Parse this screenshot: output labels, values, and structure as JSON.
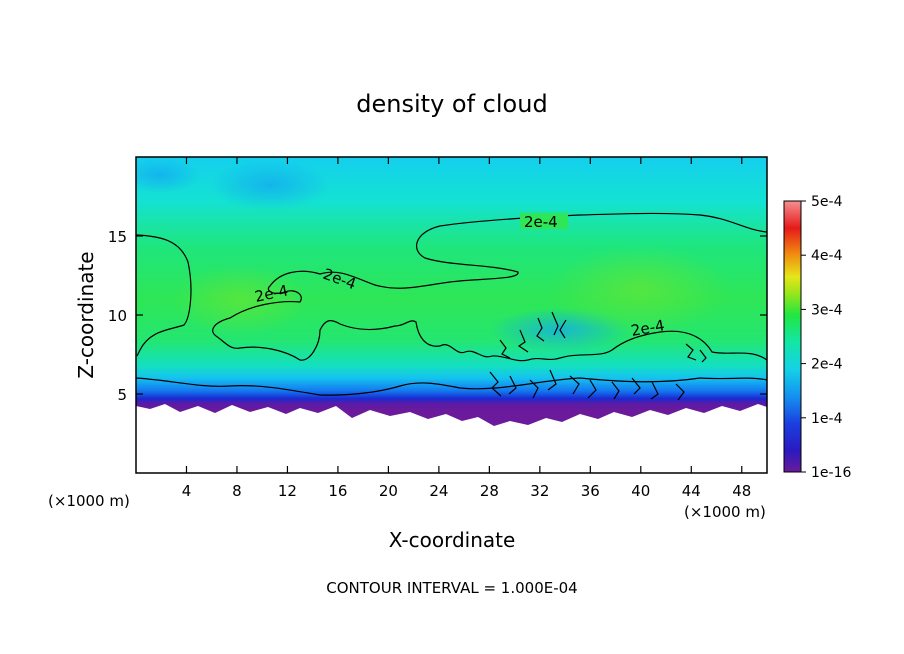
{
  "chart_data": {
    "type": "heatmap",
    "title": "density of cloud",
    "xlabel": "X-coordinate",
    "ylabel": "Z-coordinate",
    "x_unit": "(×1000 m)",
    "y_unit": "(×1000 m)",
    "xlim": [
      0,
      50
    ],
    "ylim": [
      0,
      20
    ],
    "x_ticks": [
      4,
      8,
      12,
      16,
      20,
      24,
      28,
      32,
      36,
      40,
      44,
      48
    ],
    "y_ticks": [
      5,
      10,
      15
    ],
    "colorbar": {
      "ticks": [
        "1e-16",
        "1e-4",
        "2e-4",
        "3e-4",
        "4e-4",
        "5e-4"
      ],
      "colors": [
        "#6a1a9a",
        "#1a1fcf",
        "#1480f0",
        "#14d6e8",
        "#14e6a6",
        "#22e640",
        "#8ae61a",
        "#e6e61a",
        "#f0a010",
        "#f04010",
        "#e61a1a",
        "#f47a7a"
      ]
    },
    "contour_labels": [
      "2e-4",
      "2e-4",
      "2e-4",
      "2e-4"
    ],
    "footnote": "CONTOUR INTERVAL = 1.000E-04",
    "field_summary": {
      "cloud_base_km": 3.8,
      "cloud_top_km": 20,
      "dense_layer_km": [
        6,
        15
      ],
      "peak_value": "≈3e-4"
    }
  }
}
